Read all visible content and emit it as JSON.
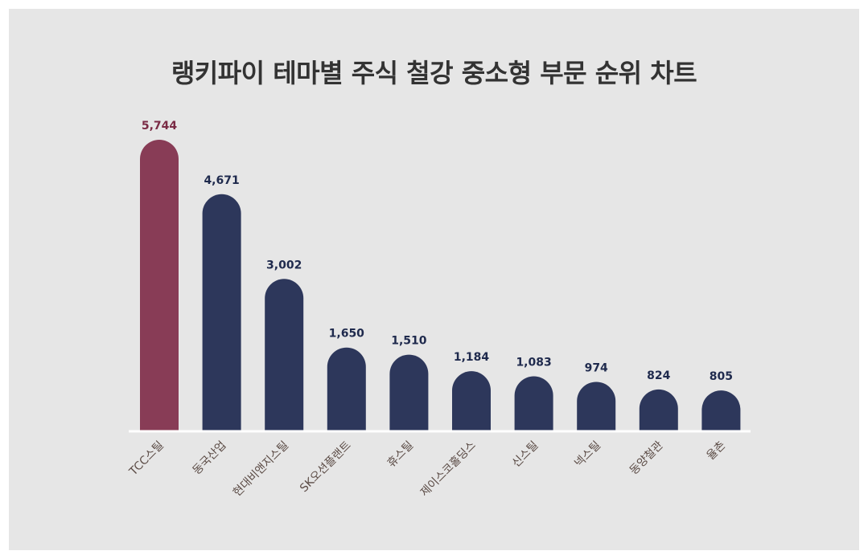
{
  "chart_data": {
    "type": "bar",
    "title": "랭키파이 테마별 주식 철강 중소형 부문 순위 차트",
    "categories": [
      "TCC스틸",
      "동국산업",
      "현대비앤지스틸",
      "SK오션플랜트",
      "휴스틸",
      "제이스코홀딩스",
      "신스틸",
      "넥스틸",
      "동양철관",
      "율촌"
    ],
    "values": [
      5744,
      4671,
      3002,
      1650,
      1510,
      1184,
      1083,
      974,
      824,
      805
    ],
    "value_labels": [
      "5,744",
      "4,671",
      "3,002",
      "1,650",
      "1,510",
      "1,184",
      "1,083",
      "974",
      "824",
      "805"
    ],
    "ylim": [
      0,
      6000
    ],
    "grid": false,
    "legend": "none",
    "colors": {
      "highlight": "#883c56",
      "bar": "#2d375b",
      "highlight_label": "#7a2b45",
      "bar_label": "#1f2a4d",
      "baseline": "#ffffff",
      "background": "#e6e6e6"
    }
  }
}
